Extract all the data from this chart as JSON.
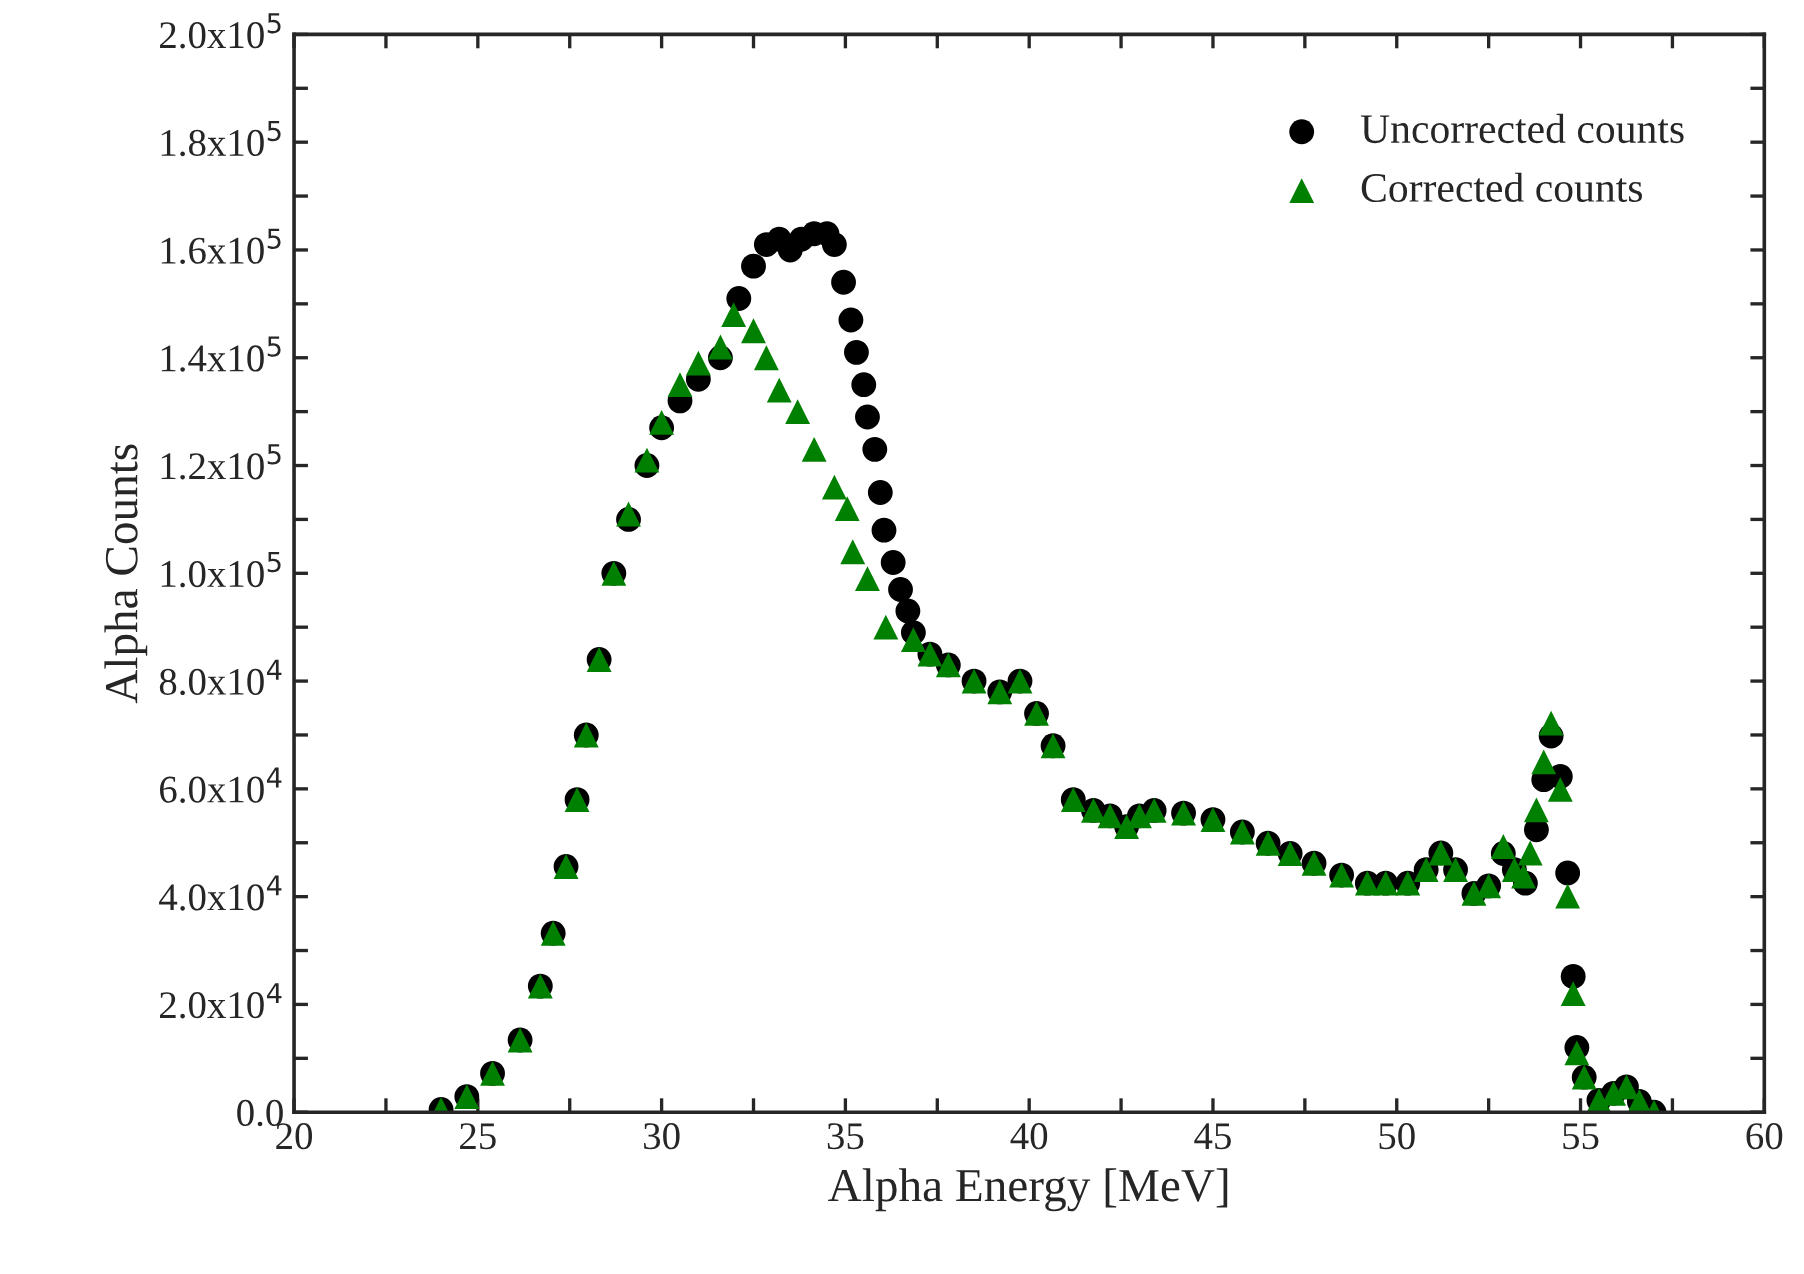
{
  "chart_data": {
    "type": "scatter",
    "xlabel": "Alpha Energy [MeV]",
    "ylabel": "Alpha Counts",
    "xlim": [
      20,
      60
    ],
    "xticks": [
      20,
      {
        "value": 22.5,
        "label": null
      },
      25,
      {
        "value": 27.5,
        "label": null
      },
      30,
      {
        "value": 32.5,
        "label": null
      },
      35,
      {
        "value": 37.5,
        "label": null
      },
      40,
      {
        "value": 42.5,
        "label": null
      },
      45,
      {
        "value": 47.5,
        "label": null
      },
      50,
      {
        "value": 52.5,
        "label": null
      },
      55,
      {
        "value": 57.5,
        "label": null
      },
      60
    ],
    "ylim": [
      0,
      200000
    ],
    "yticks": [
      {
        "value": 0,
        "label": "0.0"
      },
      {
        "value": 10000,
        "label": null
      },
      {
        "value": 20000,
        "label": "2.0x10$^{4}$"
      },
      {
        "value": 30000,
        "label": null
      },
      {
        "value": 40000,
        "label": "4.0x10$^{4}$"
      },
      {
        "value": 50000,
        "label": null
      },
      {
        "value": 60000,
        "label": "6.0x10$^{4}$"
      },
      {
        "value": 70000,
        "label": null
      },
      {
        "value": 80000,
        "label": "8.0x10$^{4}$"
      },
      {
        "value": 90000,
        "label": null
      },
      {
        "value": 100000,
        "label": "1.0x10$^{5}$"
      },
      {
        "value": 110000,
        "label": null
      },
      {
        "value": 120000,
        "label": "1.2x10$^{5}$"
      },
      {
        "value": 130000,
        "label": null
      },
      {
        "value": 140000,
        "label": "1.4x10$^{5}$"
      },
      {
        "value": 150000,
        "label": null
      },
      {
        "value": 160000,
        "label": "1.6x10$^{5}$"
      },
      {
        "value": 170000,
        "label": null
      },
      {
        "value": 180000,
        "label": "1.8x10$^{5}$"
      },
      {
        "value": 190000,
        "label": null
      },
      {
        "value": 200000,
        "label": "2.0x10$^{5}$"
      }
    ],
    "grid": false,
    "legend": "top right",
    "series": [
      {
        "name": "Uncorrected counts",
        "color": "#000000",
        "marker": "circle",
        "x": [
          24.0,
          24.7,
          25.4,
          26.15,
          26.7,
          27.05,
          27.4,
          27.7,
          27.95,
          28.3,
          28.7,
          29.1,
          29.6,
          30.0,
          30.5,
          31.0,
          31.6,
          32.1,
          32.5,
          32.85,
          33.2,
          33.5,
          33.8,
          34.15,
          34.5,
          34.7,
          34.95,
          35.15,
          35.3,
          35.5,
          35.6,
          35.8,
          35.95,
          36.05,
          36.3,
          36.5,
          36.7,
          36.85,
          37.3,
          37.8,
          38.5,
          39.2,
          39.75,
          40.2,
          40.65,
          41.2,
          41.75,
          42.2,
          42.65,
          43.0,
          43.4,
          44.2,
          45.0,
          45.8,
          46.5,
          47.1,
          47.75,
          48.5,
          49.2,
          49.7,
          50.3,
          50.8,
          51.2,
          51.6,
          52.1,
          52.5,
          52.9,
          53.2,
          53.5,
          53.8,
          54.0,
          54.2,
          54.45,
          54.65,
          54.8,
          54.9,
          55.1,
          55.5,
          55.9,
          56.25,
          56.6,
          57.0
        ],
        "values": [
          500,
          2900,
          7200,
          13400,
          23400,
          33200,
          45600,
          58000,
          70000,
          84000,
          100000,
          110000,
          120000,
          127000,
          132000,
          136000,
          140000,
          151000,
          157000,
          161000,
          162000,
          160000,
          162000,
          163000,
          163000,
          161000,
          154000,
          147000,
          141000,
          135000,
          129000,
          123000,
          115000,
          108000,
          102000,
          97000,
          93000,
          89000,
          85000,
          83000,
          80000,
          78000,
          80000,
          74000,
          68000,
          58000,
          56000,
          55000,
          53000,
          55000,
          56000,
          55500,
          54300,
          52000,
          49900,
          48000,
          46200,
          44000,
          42500,
          42500,
          42500,
          45000,
          48100,
          45000,
          40600,
          42000,
          48000,
          45000,
          42500,
          52400,
          61700,
          69800,
          62300,
          44400,
          25200,
          12000,
          6500,
          2200,
          3500,
          4700,
          2000,
          0
        ]
      },
      {
        "name": "Corrected counts",
        "color": "#008000",
        "marker": "triangle",
        "x": [
          24.0,
          24.7,
          25.4,
          26.15,
          26.7,
          27.05,
          27.4,
          27.7,
          27.95,
          28.3,
          28.7,
          29.1,
          29.6,
          30.0,
          30.5,
          31.0,
          31.6,
          31.96,
          32.5,
          32.85,
          33.2,
          33.7,
          34.15,
          34.7,
          35.05,
          35.2,
          35.6,
          36.1,
          36.85,
          37.3,
          37.8,
          38.5,
          39.2,
          39.75,
          40.2,
          40.65,
          41.2,
          41.75,
          42.2,
          42.65,
          43.0,
          43.4,
          44.2,
          45.0,
          45.8,
          46.5,
          47.1,
          47.75,
          48.5,
          49.2,
          49.7,
          50.3,
          50.8,
          51.2,
          51.6,
          52.1,
          52.5,
          52.9,
          53.2,
          53.45,
          53.63,
          53.8,
          54.0,
          54.2,
          54.45,
          54.65,
          54.8,
          54.9,
          55.1,
          55.5,
          55.9,
          56.25,
          56.6,
          57.0
        ],
        "values": [
          500,
          2900,
          7200,
          13400,
          23400,
          33200,
          45600,
          58000,
          70000,
          84000,
          100000,
          111000,
          121000,
          128000,
          135000,
          139000,
          142000,
          148000,
          145000,
          140000,
          134000,
          130000,
          123000,
          116000,
          112000,
          104000,
          99000,
          90000,
          87700,
          85000,
          83000,
          80000,
          78000,
          80000,
          74000,
          68000,
          58000,
          56000,
          55000,
          53000,
          55000,
          56000,
          55500,
          54300,
          52000,
          49900,
          48000,
          46200,
          44000,
          42500,
          42500,
          42500,
          45000,
          48100,
          45000,
          40600,
          42000,
          49300,
          45000,
          43800,
          48100,
          56100,
          65000,
          72200,
          59900,
          40100,
          22000,
          11000,
          6500,
          2200,
          3500,
          4700,
          2000,
          0
        ]
      }
    ]
  }
}
